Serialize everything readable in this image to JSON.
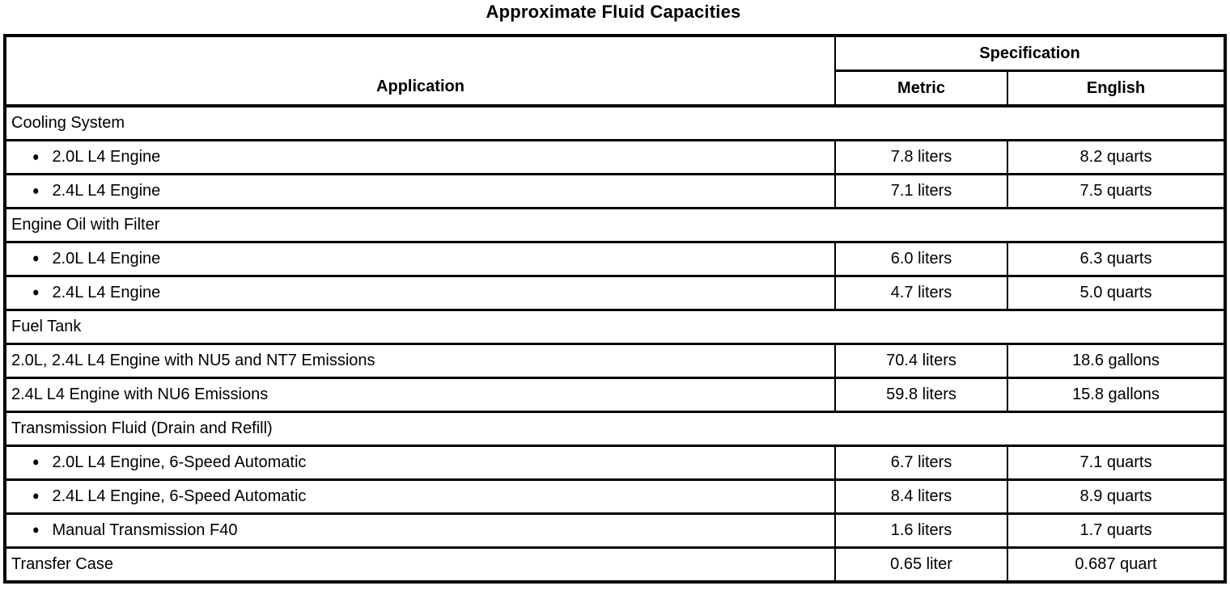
{
  "title": "Approximate Fluid Capacities",
  "table": {
    "headers": {
      "application": "Application",
      "specification": "Specification",
      "metric": "Metric",
      "english": "English"
    },
    "bullet_glyph": "●",
    "rows": [
      {
        "type": "section",
        "label": "Cooling System"
      },
      {
        "type": "bullet",
        "label": "2.0L L4 Engine",
        "metric": "7.8 liters",
        "english": "8.2 quarts"
      },
      {
        "type": "bullet",
        "label": "2.4L L4 Engine",
        "metric": "7.1 liters",
        "english": "7.5 quarts"
      },
      {
        "type": "section",
        "label": "Engine Oil with Filter"
      },
      {
        "type": "bullet",
        "label": "2.0L L4 Engine",
        "metric": "6.0 liters",
        "english": "6.3 quarts"
      },
      {
        "type": "bullet",
        "label": "2.4L L4 Engine",
        "metric": "4.7 liters",
        "english": "5.0 quarts"
      },
      {
        "type": "section",
        "label": "Fuel Tank"
      },
      {
        "type": "plain",
        "label": "2.0L, 2.4L L4 Engine with NU5 and NT7 Emissions",
        "metric": "70.4 liters",
        "english": "18.6 gallons"
      },
      {
        "type": "plain",
        "label": "2.4L L4 Engine with NU6 Emissions",
        "metric": "59.8 liters",
        "english": "15.8 gallons"
      },
      {
        "type": "section",
        "label": "Transmission Fluid (Drain and Refill)"
      },
      {
        "type": "bullet",
        "label": "2.0L L4 Engine, 6-Speed Automatic",
        "metric": "6.7 liters",
        "english": "7.1 quarts"
      },
      {
        "type": "bullet",
        "label": "2.4L L4 Engine, 6-Speed Automatic",
        "metric": "8.4 liters",
        "english": "8.9 quarts"
      },
      {
        "type": "bullet",
        "label": "Manual Transmission F40",
        "metric": "1.6 liters",
        "english": "1.7 quarts"
      },
      {
        "type": "plain",
        "label": "Transfer Case",
        "metric": "0.65 liter",
        "english": "0.687 quart"
      }
    ]
  }
}
